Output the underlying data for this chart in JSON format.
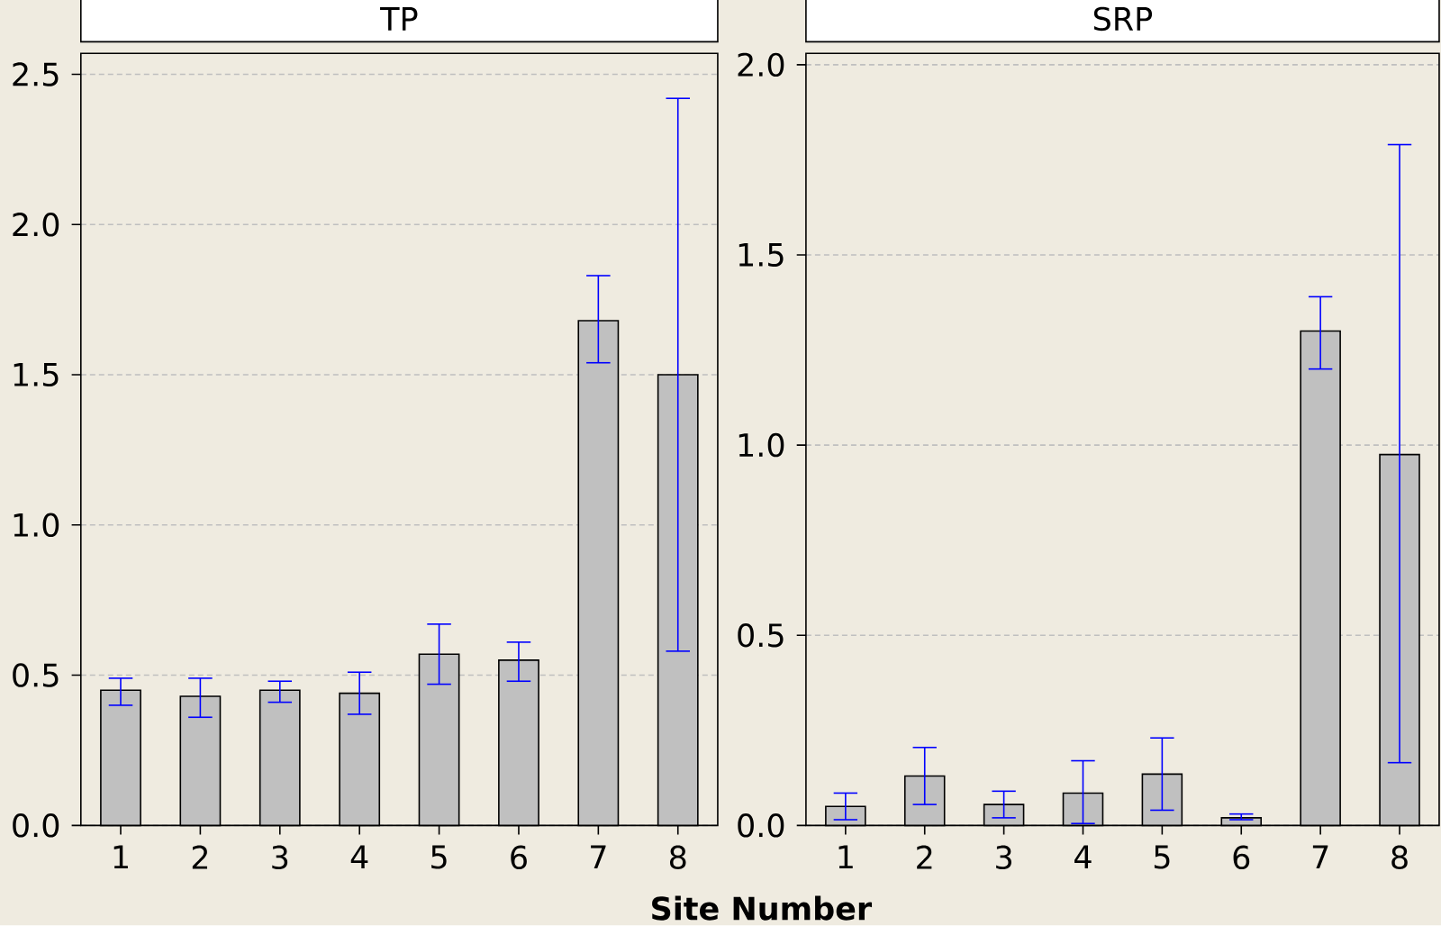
{
  "chart_data": [
    {
      "type": "bar",
      "title": "TP",
      "xlabel": "Site Number",
      "categories": [
        "1",
        "2",
        "3",
        "4",
        "5",
        "6",
        "7",
        "8"
      ],
      "color": "#c0c0c0",
      "values": [
        0.45,
        0.43,
        0.45,
        0.44,
        0.57,
        0.55,
        1.68,
        1.5
      ],
      "errors": [
        [
          0.4,
          0.49
        ],
        [
          0.36,
          0.49
        ],
        [
          0.41,
          0.48
        ],
        [
          0.37,
          0.51
        ],
        [
          0.47,
          0.67
        ],
        [
          0.48,
          0.61
        ],
        [
          1.54,
          1.83
        ],
        [
          0.58,
          2.42
        ]
      ],
      "ylim": [
        0,
        2.57
      ],
      "yticks": [
        {
          "value": 0,
          "label": "0.0"
        },
        {
          "value": 0.5,
          "label": "0.5"
        },
        {
          "value": 1,
          "label": "1.0"
        },
        {
          "value": 1.5,
          "label": "1.5"
        },
        {
          "value": 2,
          "label": "2.0"
        },
        {
          "value": 2.5,
          "label": "2.5"
        }
      ],
      "grid": "y"
    },
    {
      "type": "bar",
      "title": "SRP",
      "categories": [
        "1",
        "2",
        "3",
        "4",
        "5",
        "6",
        "7",
        "8"
      ],
      "color": "#c0c0c0",
      "values": [
        0.05,
        0.13,
        0.055,
        0.085,
        0.135,
        0.02,
        1.3,
        0.975
      ],
      "errors": [
        [
          0.015,
          0.085
        ],
        [
          0.055,
          0.205
        ],
        [
          0.02,
          0.09
        ],
        [
          0.005,
          0.17
        ],
        [
          0.04,
          0.23
        ],
        [
          0.015,
          0.03
        ],
        [
          1.2,
          1.39
        ],
        [
          0.165,
          1.79
        ]
      ],
      "ylim": [
        0,
        2.03
      ],
      "yticks": [
        {
          "value": 0,
          "label": "0.0"
        },
        {
          "value": 0.5,
          "label": "0.5"
        },
        {
          "value": 1,
          "label": "1.0"
        },
        {
          "value": 1.5,
          "label": "1.5"
        },
        {
          "value": 2,
          "label": "2.0"
        }
      ],
      "grid": "y"
    }
  ]
}
